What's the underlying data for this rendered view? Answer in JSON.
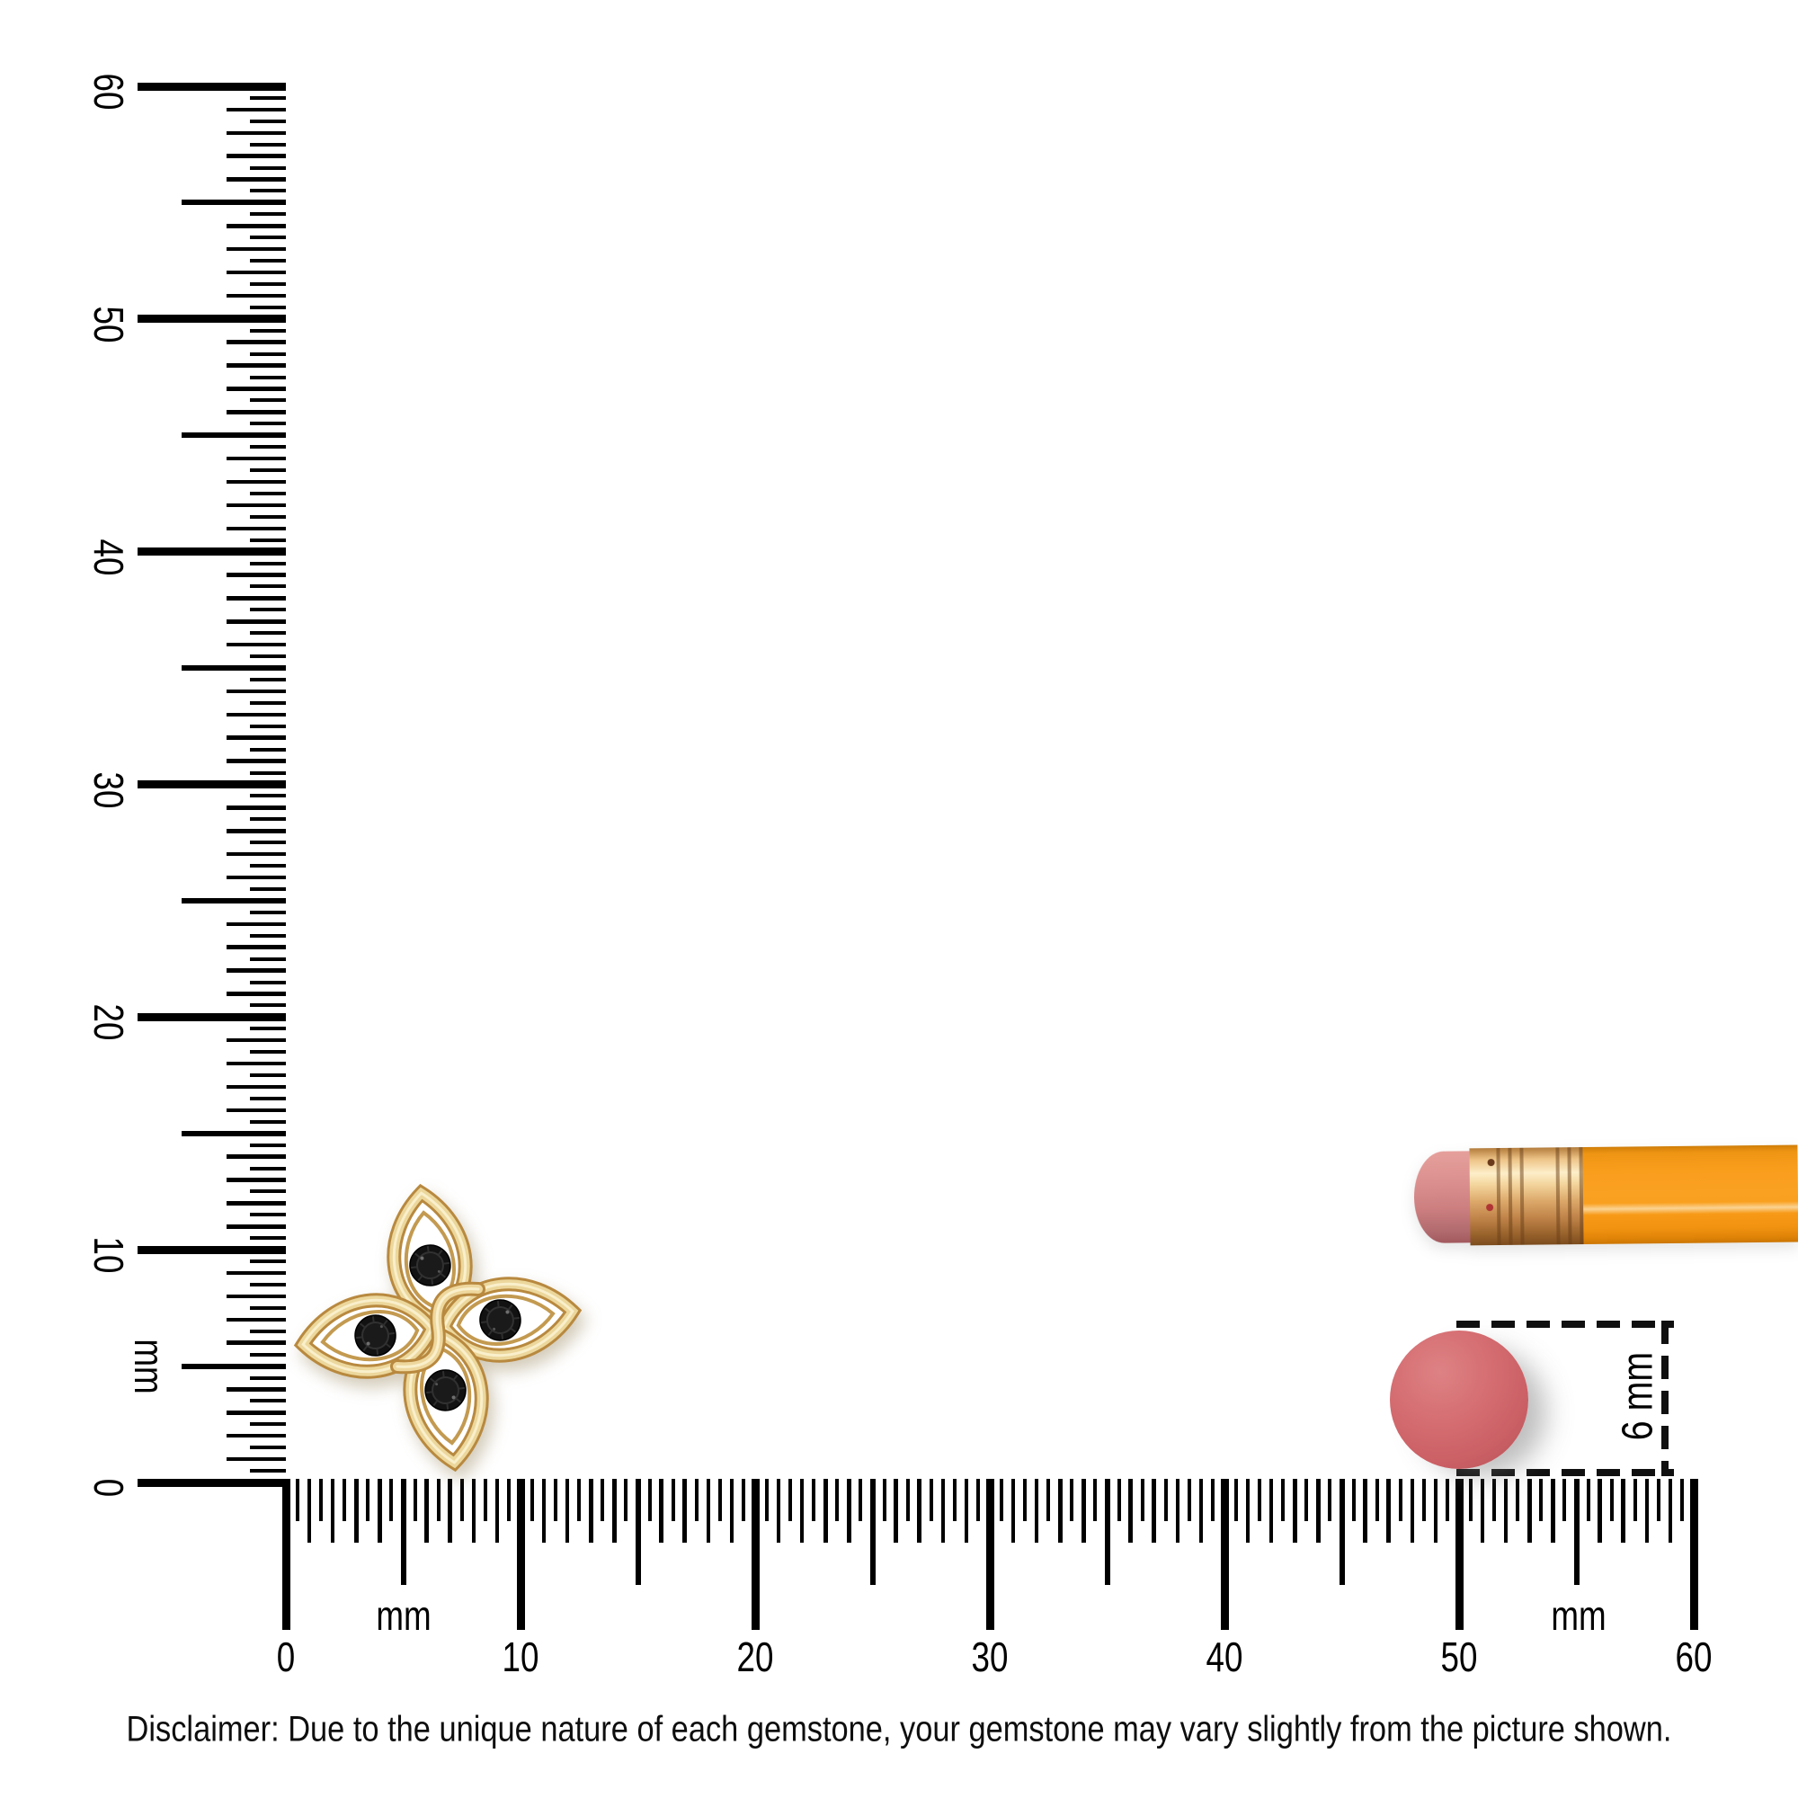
{
  "page": {
    "background": "#ffffff"
  },
  "vertical_ruler": {
    "unit": "mm",
    "min": 0,
    "max": 60,
    "labels": [
      "0",
      "10",
      "20",
      "30",
      "40",
      "50",
      "60"
    ]
  },
  "horizontal_ruler": {
    "unit": "mm",
    "min": 0,
    "max": 60,
    "labels": [
      "0",
      "10",
      "20",
      "30",
      "40",
      "50",
      "60"
    ]
  },
  "size_callout": {
    "label": "6 mm"
  },
  "gem_dot": {
    "color": "#cf666b",
    "represents": "6 mm round gemstone top view"
  },
  "pendant": {
    "description": "gold four-petal love-knot jewel with four round black gemstones",
    "gold_color": "#ecd79c",
    "gold_edge_color": "#b8893f",
    "gem_color": "#121212",
    "gem_count": 4
  },
  "pencil": {
    "body_color": "#f99d1d",
    "ferrule_color": "#eec488",
    "eraser_color": "#da8f8e"
  },
  "disclaimer": {
    "text": "Disclaimer: Due to the unique nature of each gemstone, your gemstone may vary slightly from the picture shown."
  }
}
